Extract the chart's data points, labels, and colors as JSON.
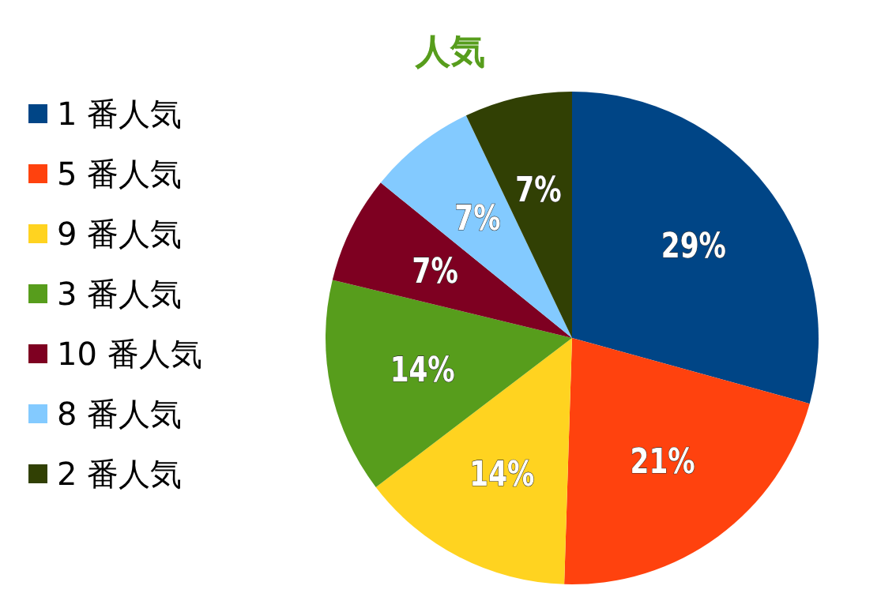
{
  "chart_data": {
    "type": "pie",
    "title": "人気",
    "categories": [
      "1 番人気",
      "5 番人気",
      "9 番人気",
      "3 番人気",
      "10 番人気",
      "8 番人気",
      "2 番人気"
    ],
    "values": [
      29,
      21,
      14,
      14,
      7,
      7,
      7
    ],
    "colors": [
      "#004586",
      "#ff420e",
      "#ffd320",
      "#579d1c",
      "#7e0021",
      "#83caff",
      "#314004"
    ],
    "value_labels": [
      "29%",
      "21%",
      "14%",
      "14%",
      "7%",
      "7%",
      "7%"
    ],
    "legend": "left"
  }
}
